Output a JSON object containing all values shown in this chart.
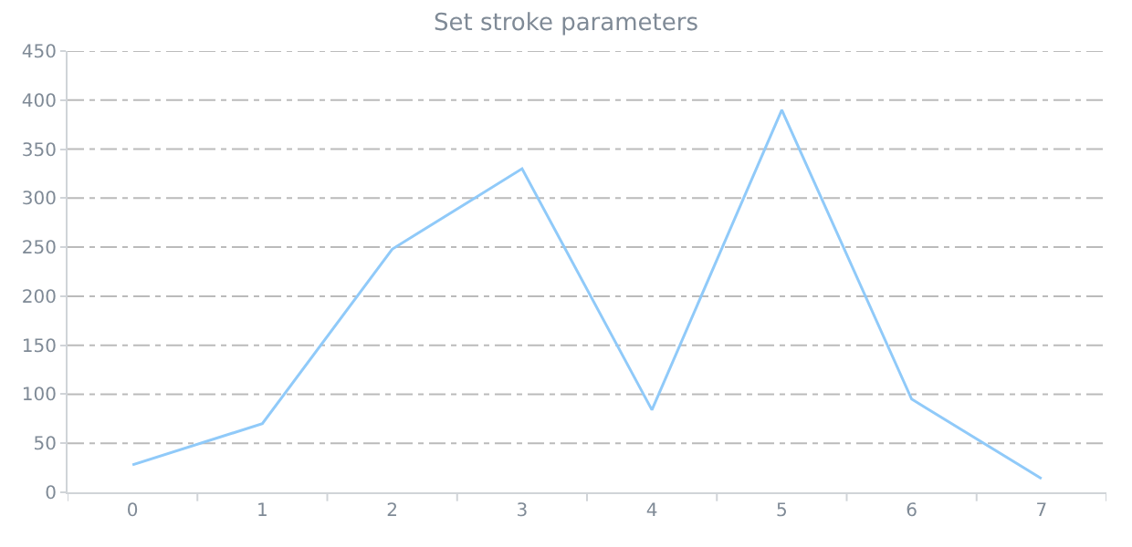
{
  "chart_data": {
    "type": "line",
    "title": "Set stroke parameters",
    "categories": [
      "0",
      "1",
      "2",
      "3",
      "4",
      "5",
      "6",
      "7"
    ],
    "series": [
      {
        "color": "#90caf9",
        "values": [
          28,
          70,
          248,
          330,
          84,
          390,
          95,
          14
        ]
      }
    ],
    "ylim": [
      0,
      450
    ],
    "yticks": [
      0,
      50,
      100,
      150,
      200,
      250,
      300,
      350,
      400,
      450
    ],
    "grid": "y",
    "marker": "none",
    "line_style": "solid"
  }
}
